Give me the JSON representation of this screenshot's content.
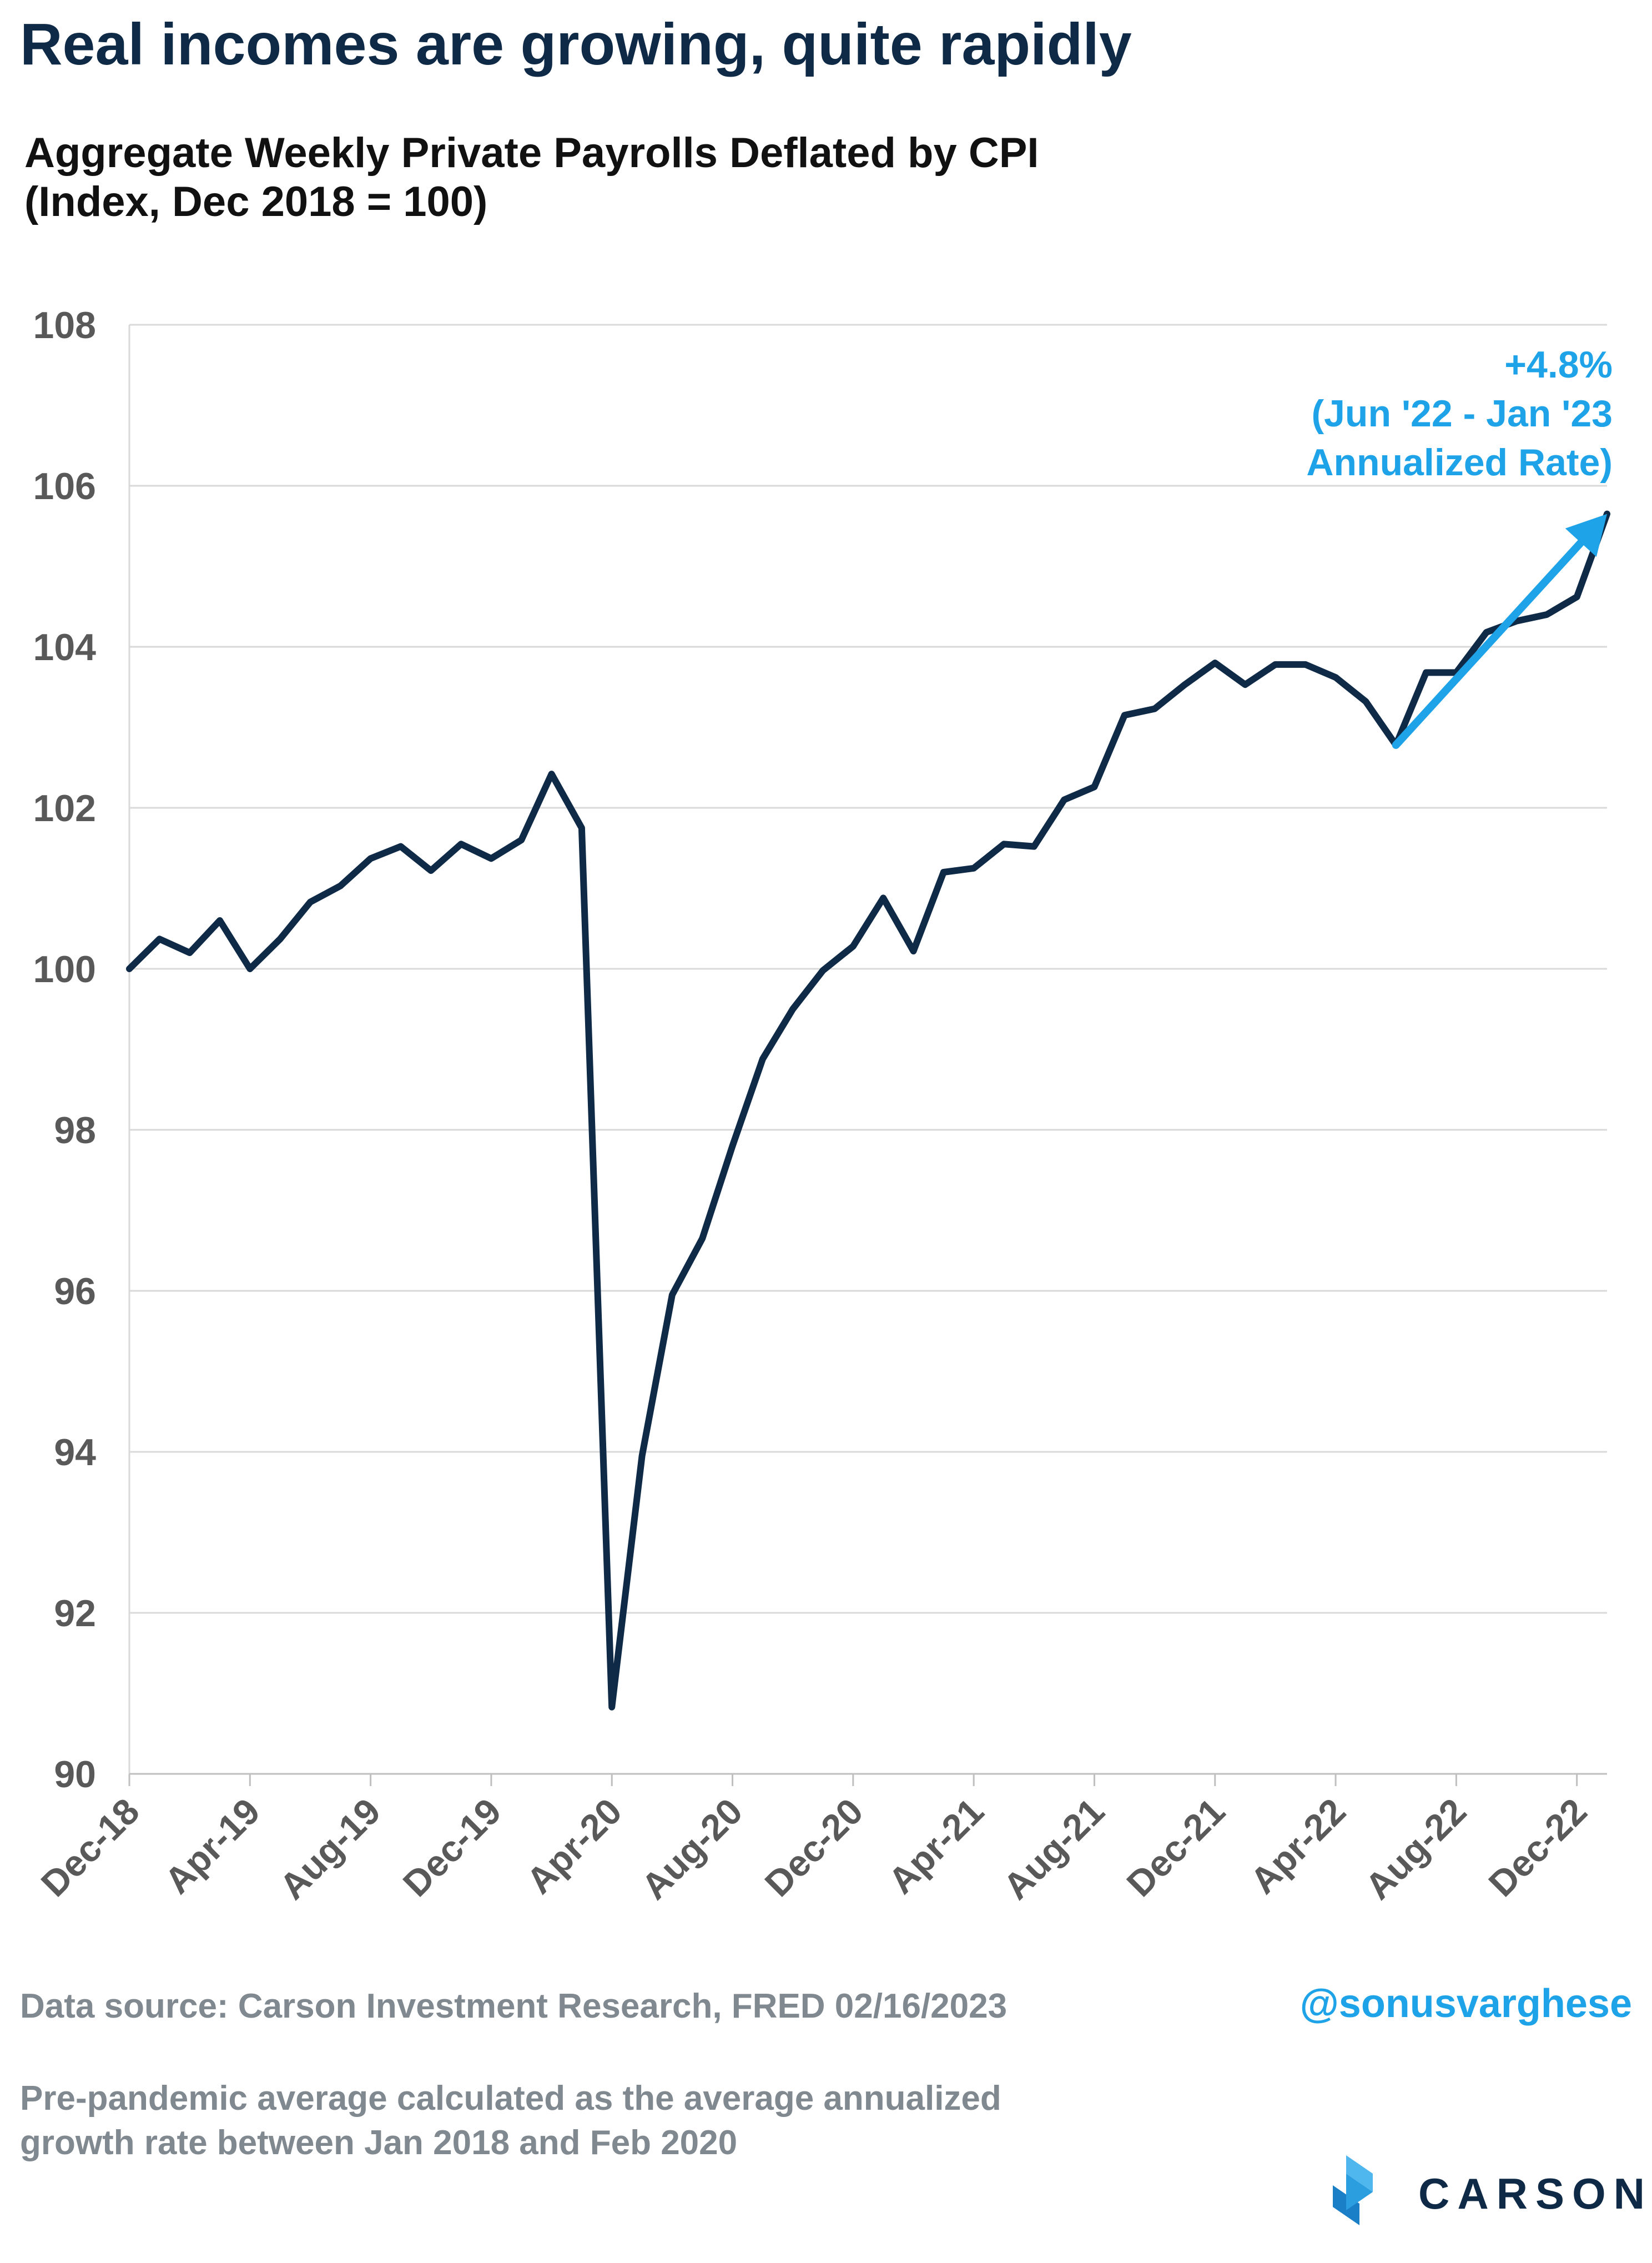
{
  "headline": "Real incomes are growing, quite rapidly",
  "footer": {
    "source": "Data source: Carson Investment Research, FRED   02/16/2023",
    "handle": "@sonusvarghese",
    "note_line1": "Pre-pandemic average calculated as the average annualized",
    "note_line2": "growth rate between Jan 2018 and Feb 2020"
  },
  "logo": {
    "word": "CARSON",
    "icon": "carson-chevron-logo-icon"
  },
  "colors": {
    "line": "#0f2a47",
    "arrow": "#1ea3e8",
    "grid": "#d9d9d9",
    "axis_text": "#595959"
  },
  "chart_data": {
    "type": "line",
    "title_line1": "Aggregate Weekly Private Payrolls Deflated by CPI",
    "title_line2": "(Index, Dec 2018 = 100)",
    "ylim": [
      90,
      108
    ],
    "ytick_step": 2,
    "grid": "horizontal",
    "xtick_labels": [
      "Dec-18",
      "Apr-19",
      "Aug-19",
      "Dec-19",
      "Apr-20",
      "Aug-20",
      "Dec-20",
      "Apr-21",
      "Aug-21",
      "Dec-21",
      "Apr-22",
      "Aug-22",
      "Dec-22"
    ],
    "series": [
      {
        "dates": [
          "Dec-18",
          "Jan-19",
          "Feb-19",
          "Mar-19",
          "Apr-19",
          "May-19",
          "Jun-19",
          "Jul-19",
          "Aug-19",
          "Sep-19",
          "Oct-19",
          "Nov-19",
          "Dec-19",
          "Jan-20",
          "Feb-20",
          "Mar-20",
          "Apr-20",
          "May-20",
          "Jun-20",
          "Jul-20",
          "Aug-20",
          "Sep-20",
          "Oct-20",
          "Nov-20",
          "Dec-20",
          "Jan-21",
          "Feb-21",
          "Mar-21",
          "Apr-21",
          "May-21",
          "Jun-21",
          "Jul-21",
          "Aug-21",
          "Sep-21",
          "Oct-21",
          "Nov-21",
          "Dec-21",
          "Jan-22",
          "Feb-22",
          "Mar-22",
          "Apr-22",
          "May-22",
          "Jun-22",
          "Jul-22",
          "Aug-22",
          "Sep-22",
          "Oct-22",
          "Nov-22",
          "Dec-22",
          "Jan-23"
        ],
        "values": [
          100.0,
          100.37,
          100.2,
          100.6,
          100.0,
          100.37,
          100.83,
          101.03,
          101.37,
          101.52,
          101.22,
          101.55,
          101.37,
          101.6,
          102.42,
          101.75,
          90.83,
          93.95,
          95.95,
          96.65,
          97.8,
          98.88,
          99.5,
          99.98,
          100.28,
          100.88,
          100.22,
          101.2,
          101.25,
          101.55,
          101.52,
          102.1,
          102.26,
          103.15,
          103.23,
          103.53,
          103.8,
          103.53,
          103.78,
          103.78,
          103.62,
          103.32,
          102.78,
          103.68,
          103.68,
          104.18,
          104.32,
          104.4,
          104.62,
          105.65
        ]
      }
    ],
    "annotation": {
      "line1": "+4.8%",
      "line2": "(Jun '22 - Jan '23",
      "line3": "Annualized Rate)",
      "arrow_from": {
        "date": "Jun-22",
        "value": 102.78
      },
      "arrow_to": {
        "date": "Jan-23",
        "value": 105.65
      }
    }
  }
}
